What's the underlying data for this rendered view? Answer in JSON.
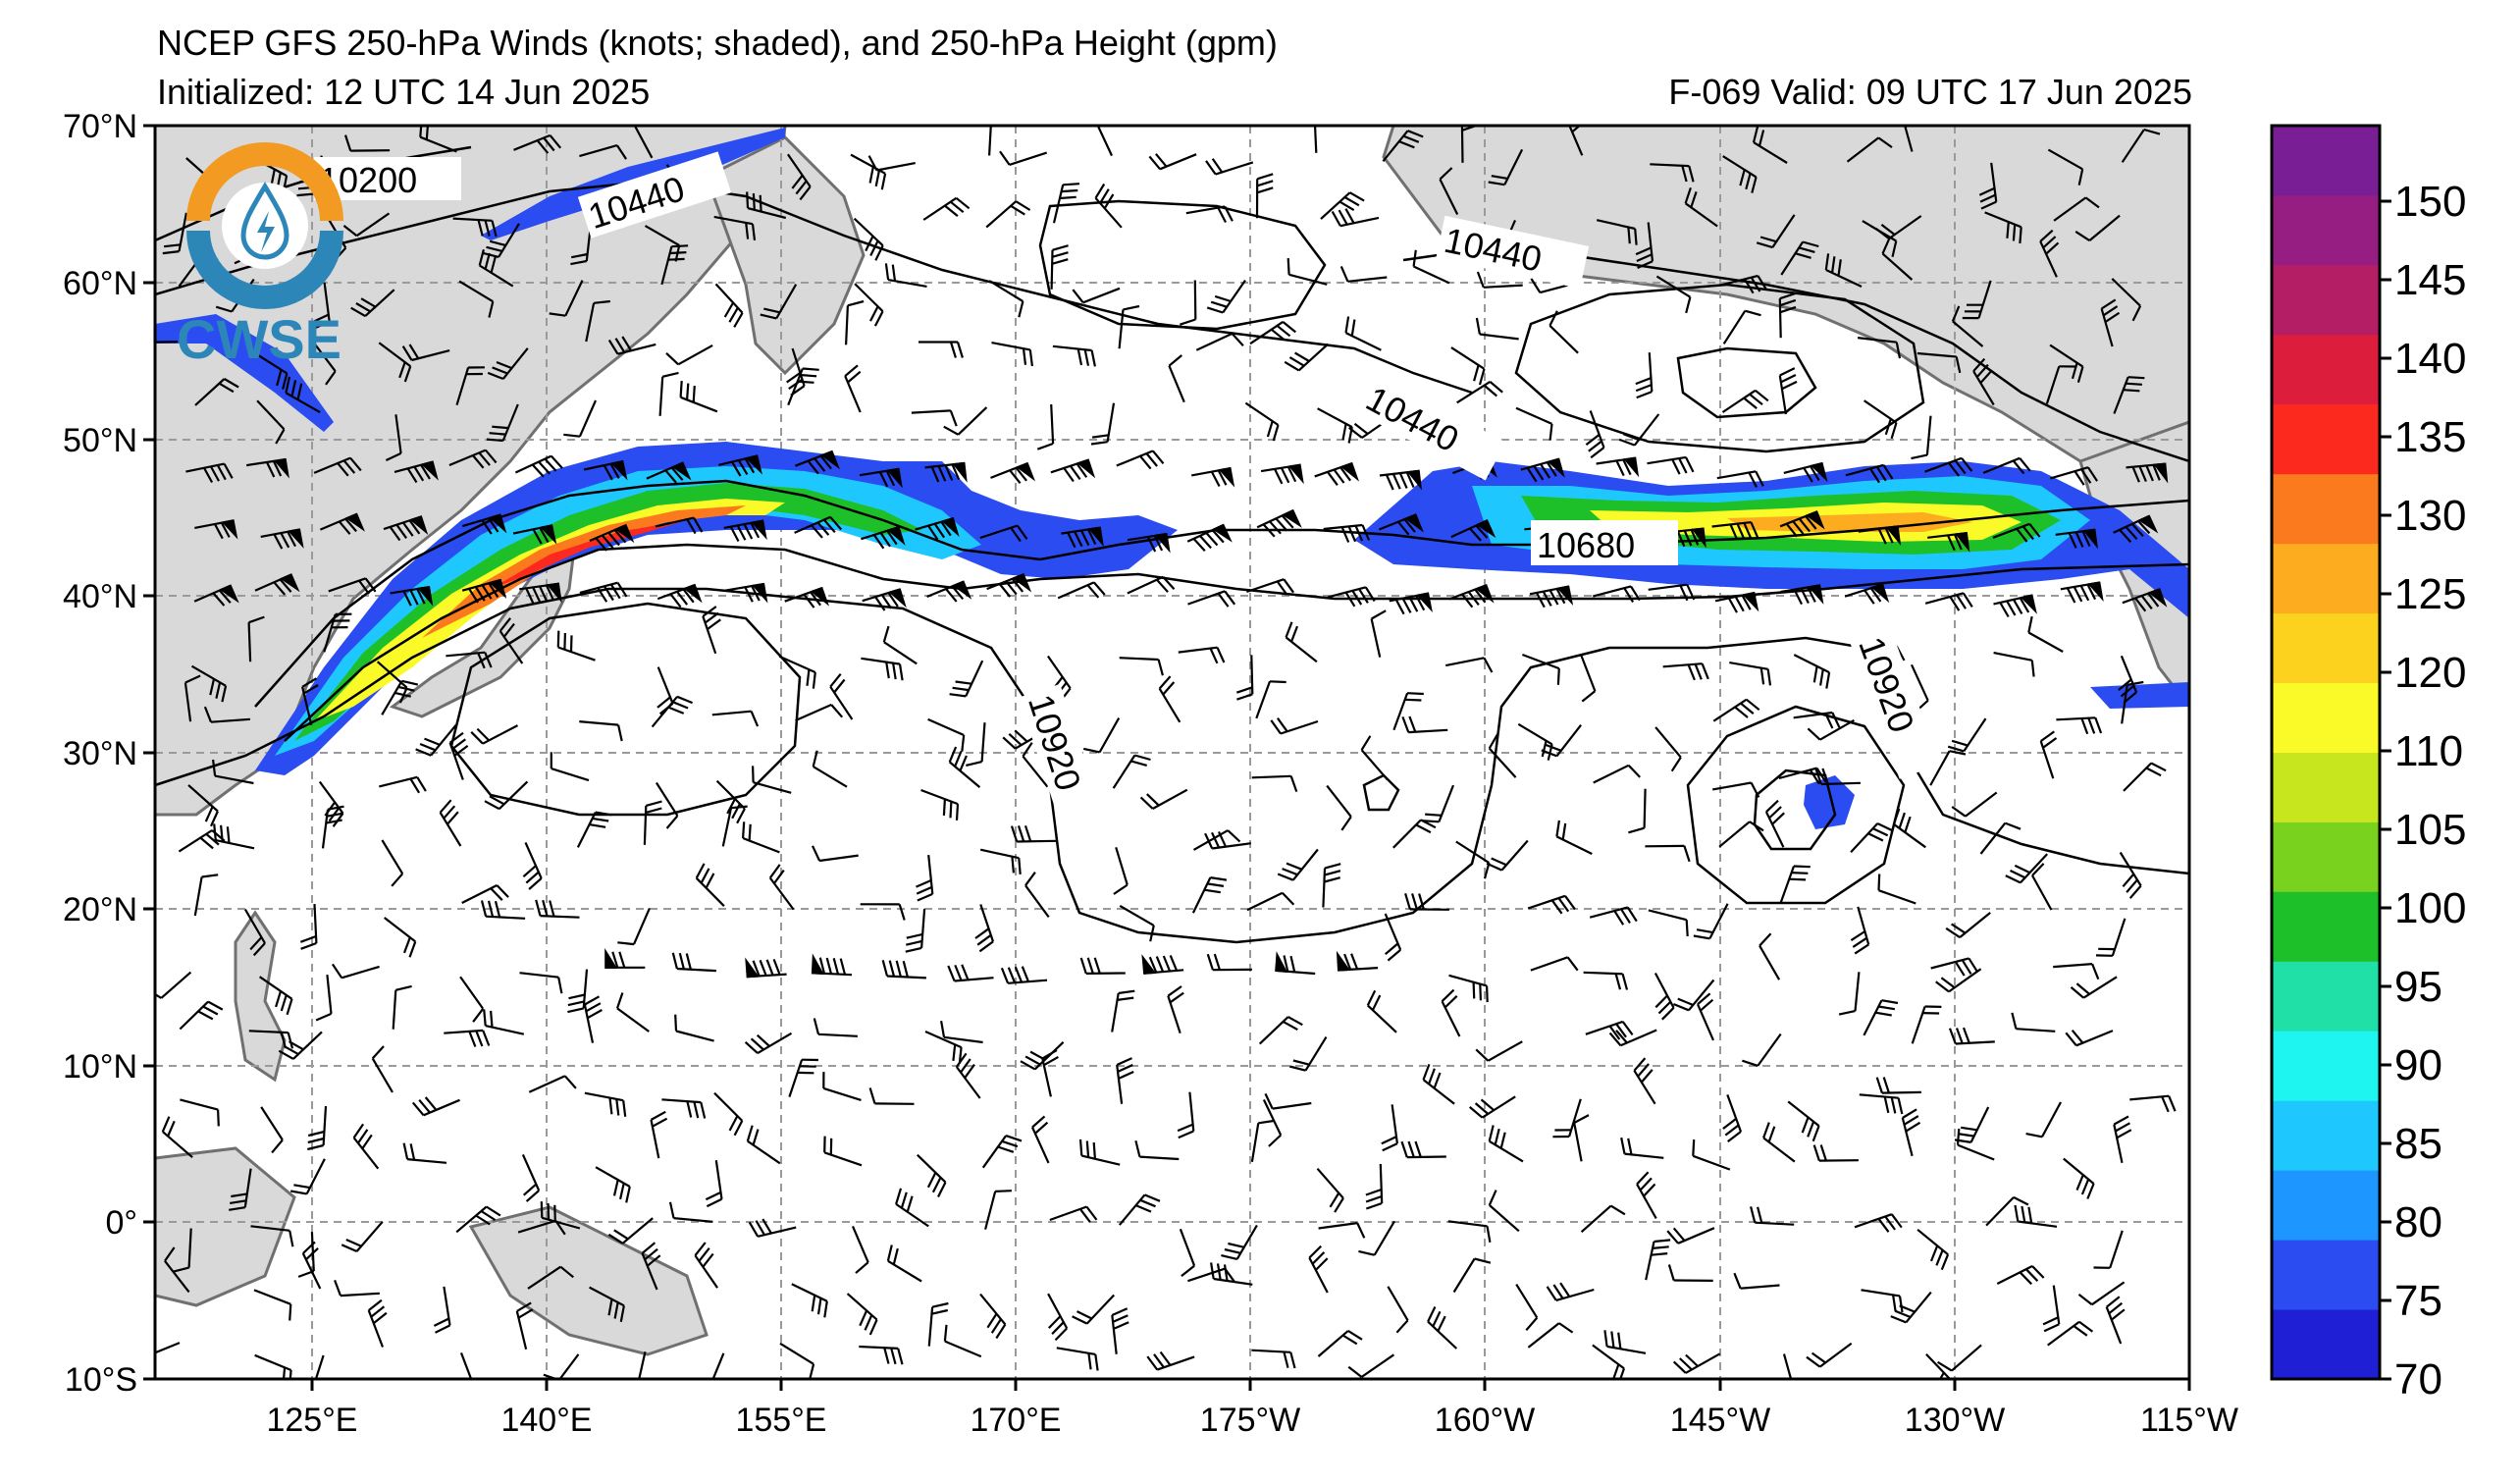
{
  "title": {
    "line1": "NCEP GFS 250-hPa Winds (knots; shaded), and 250-hPa Height (gpm)",
    "initialized": "Initialized: 12 UTC 14 Jun 2025",
    "valid": "F-069  Valid: 09 UTC 17 Jun 2025"
  },
  "logo": {
    "text": "CWSE",
    "icon": "water-drop-lightning-icon"
  },
  "axes": {
    "lat_labels": [
      "70°N",
      "60°N",
      "50°N",
      "40°N",
      "30°N",
      "20°N",
      "10°N",
      "0°",
      "10°S"
    ],
    "lat_values": [
      70,
      60,
      50,
      40,
      30,
      20,
      10,
      0,
      -10
    ],
    "lon_labels": [
      "125°E",
      "140°E",
      "155°E",
      "170°E",
      "175°W",
      "160°W",
      "145°W",
      "130°W",
      "115°W"
    ],
    "lon_values": [
      125,
      140,
      155,
      170,
      185,
      200,
      215,
      230,
      245
    ],
    "lon_range": [
      115,
      245
    ],
    "lat_range": [
      -10,
      70
    ],
    "grid": "dashed gray"
  },
  "colorbar": {
    "labels": [
      "70",
      "75",
      "80",
      "85",
      "90",
      "95",
      "100",
      "105",
      "110",
      "120",
      "125",
      "130",
      "135",
      "140",
      "145",
      "150"
    ],
    "levels": [
      70,
      75,
      80,
      85,
      90,
      95,
      100,
      105,
      110,
      115,
      120,
      125,
      130,
      135,
      140,
      145,
      150,
      155
    ],
    "colors": [
      "#1f1fd6",
      "#2a4cf0",
      "#1e96ff",
      "#1ec8ff",
      "#1ef5f0",
      "#20e0a8",
      "#1ec02a",
      "#78d21e",
      "#c8e61e",
      "#fafa28",
      "#fcd21e",
      "#fcac1e",
      "#fc7a1e",
      "#fc2a1e",
      "#dc1e3c",
      "#b41e64",
      "#961e82",
      "#7a1e96"
    ]
  },
  "contour_labels": [
    "10200",
    "10440",
    "10440",
    "10440",
    "10680",
    "10920",
    "10920"
  ],
  "colors": {
    "land": "#d9d9d9",
    "coast": "#707070",
    "grid": "#9a9a9a",
    "contour": "#000000"
  }
}
